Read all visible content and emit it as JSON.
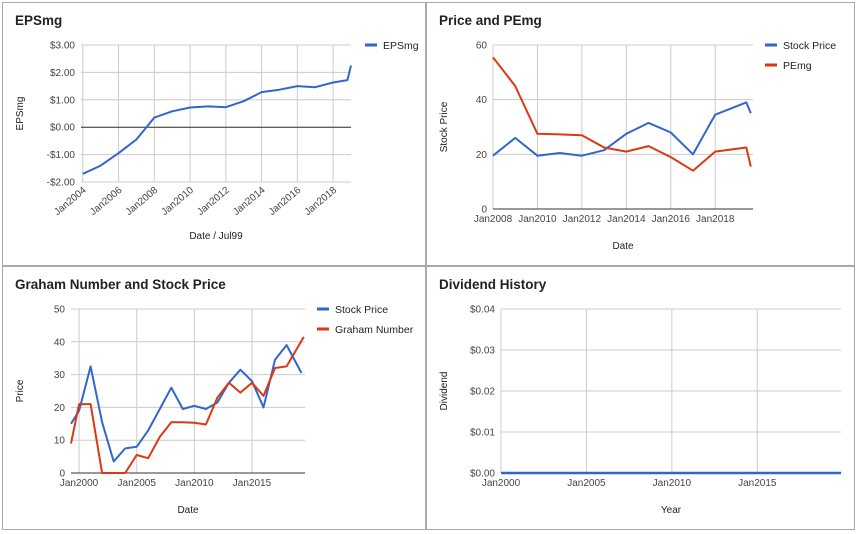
{
  "colors": {
    "blue": "#3366cc",
    "red": "#dc3912",
    "grid": "#cccccc",
    "zero": "#333333"
  },
  "chart_data": [
    {
      "type": "line",
      "title": "EPSmg",
      "xlabel": "Date / Jul99",
      "ylabel": "EPSmg",
      "xlim": [
        2003.9,
        2019.0
      ],
      "ylim": [
        -2,
        3
      ],
      "yticks": [
        3,
        2,
        1,
        0,
        -1,
        -2
      ],
      "ytick_labels": [
        "$3.00",
        "$2.00",
        "$1.00",
        "$0.00",
        "-$1.00",
        "-$2.00"
      ],
      "xticks": [
        2004,
        2006,
        2008,
        2010,
        2012,
        2014,
        2016,
        2018
      ],
      "xtick_labels": [
        "Jan2004",
        "Jan2006",
        "Jan2008",
        "Jan2010",
        "Jan2012",
        "Jan2014",
        "Jan2016",
        "Jan2018"
      ],
      "rotate_x": true,
      "zero_line": true,
      "legend_position": "right",
      "series": [
        {
          "name": "EPSmg",
          "color": "#3366cc",
          "x": [
            2004,
            2005,
            2006,
            2007,
            2008,
            2009,
            2010,
            2011,
            2012,
            2013,
            2014,
            2015,
            2016,
            2017,
            2018,
            2018.8,
            2019
          ],
          "y": [
            -1.7,
            -1.4,
            -0.95,
            -0.45,
            0.35,
            0.58,
            0.72,
            0.76,
            0.73,
            0.95,
            1.28,
            1.37,
            1.5,
            1.46,
            1.63,
            1.72,
            2.25
          ]
        }
      ]
    },
    {
      "type": "line",
      "title": "Price and PEmg",
      "xlabel": "Date",
      "ylabel": "Stock Price",
      "xlim": [
        2008,
        2019.7
      ],
      "ylim": [
        0,
        60
      ],
      "yticks": [
        0,
        20,
        40,
        60
      ],
      "ytick_labels": [
        "0",
        "20",
        "40",
        "60"
      ],
      "xticks": [
        2008,
        2010,
        2012,
        2014,
        2016,
        2018
      ],
      "xtick_labels": [
        "Jan2008",
        "Jan2010",
        "Jan2012",
        "Jan2014",
        "Jan2016",
        "Jan2018"
      ],
      "rotate_x": false,
      "legend_position": "right",
      "series": [
        {
          "name": "Stock Price",
          "color": "#3366cc",
          "x": [
            2008,
            2009,
            2010,
            2011,
            2012,
            2013,
            2014,
            2015,
            2016,
            2017,
            2018,
            2019.4,
            2019.6
          ],
          "y": [
            19.5,
            26,
            19.5,
            20.5,
            19.5,
            21.5,
            27.5,
            31.5,
            28,
            20,
            34.5,
            39,
            35
          ]
        },
        {
          "name": "PEmg",
          "color": "#dc3912",
          "x": [
            2008,
            2009,
            2010,
            2011,
            2012,
            2013,
            2014,
            2015,
            2016,
            2017,
            2018,
            2019.4,
            2019.6
          ],
          "y": [
            55.5,
            45,
            27.5,
            27.3,
            27,
            22.5,
            21,
            23,
            19,
            14,
            21,
            22.5,
            15.5
          ]
        }
      ]
    },
    {
      "type": "line",
      "title": "Graham Number and Stock Price",
      "xlabel": "Date",
      "ylabel": "Price",
      "xlim": [
        1999.3,
        2019.6
      ],
      "ylim": [
        0,
        50
      ],
      "yticks": [
        0,
        10,
        20,
        30,
        40,
        50
      ],
      "ytick_labels": [
        "0",
        "10",
        "20",
        "30",
        "40",
        "50"
      ],
      "xticks": [
        2000,
        2005,
        2010,
        2015
      ],
      "xtick_labels": [
        "Jan2000",
        "Jan2005",
        "Jan2010",
        "Jan2015"
      ],
      "rotate_x": false,
      "legend_position": "right",
      "series": [
        {
          "name": "Stock Price",
          "color": "#3366cc",
          "x": [
            1999.3,
            2000,
            2001,
            2002,
            2003,
            2004,
            2005,
            2006,
            2007,
            2008,
            2009,
            2010,
            2011,
            2012,
            2013,
            2014,
            2015,
            2016,
            2017,
            2018,
            2019.3
          ],
          "y": [
            15,
            19,
            32.5,
            15.5,
            3.5,
            7.5,
            8,
            13,
            19.5,
            26,
            19.5,
            20.5,
            19.5,
            21.5,
            27.5,
            31.5,
            28,
            20,
            34.5,
            39,
            30.5
          ]
        },
        {
          "name": "Graham Number",
          "color": "#dc3912",
          "x": [
            1999.3,
            2000,
            2001,
            2002,
            2003,
            2004,
            2005,
            2006,
            2007,
            2008,
            2009,
            2010,
            2011,
            2012,
            2013,
            2014,
            2015,
            2016,
            2017,
            2018,
            2019.5
          ],
          "y": [
            9,
            21,
            21,
            0,
            0,
            0,
            5.5,
            4.5,
            11,
            15.5,
            15.5,
            15.3,
            14.8,
            23,
            27.5,
            24.5,
            27.5,
            23.5,
            32,
            32.5,
            41.5
          ]
        }
      ]
    },
    {
      "type": "line",
      "title": "Dividend History",
      "xlabel": "Year",
      "ylabel": "Dividend",
      "xlim": [
        2000,
        2019.9
      ],
      "ylim": [
        0,
        0.04
      ],
      "yticks": [
        0,
        0.01,
        0.02,
        0.03,
        0.04
      ],
      "ytick_labels": [
        "$0.00",
        "$0.01",
        "$0.02",
        "$0.03",
        "$0.04"
      ],
      "xticks": [
        2000,
        2005,
        2010,
        2015
      ],
      "xtick_labels": [
        "Jan2000",
        "Jan2005",
        "Jan2010",
        "Jan2015"
      ],
      "rotate_x": false,
      "dark_baseline": true,
      "series": [
        {
          "color": "#3366cc",
          "x": [
            2000,
            2019.9
          ],
          "y": [
            0,
            0
          ]
        }
      ]
    }
  ]
}
